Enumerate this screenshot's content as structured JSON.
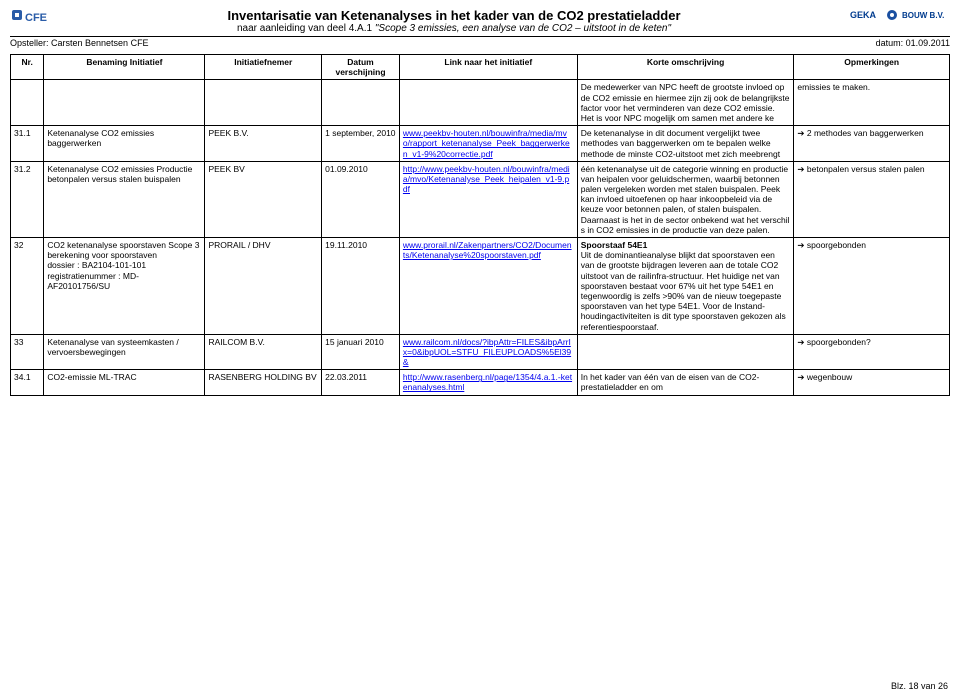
{
  "header": {
    "title": "Inventarisatie van Ketenanalyses in het kader van de CO2 prestatieladder",
    "subtitle_prefix": "naar aanleiding van deel 4.A.1 ",
    "subtitle_italic": "\"Scope 3 emissies, een analyse van de CO2 – uitstoot in de keten\"",
    "left_sub": "Opsteller: Carsten Bennetsen CFE",
    "right_sub": "datum: 01.09.2011",
    "logo_left_text": "CFE",
    "logo_right_text1": "GEKA",
    "logo_right_text2": "BOUW B.V."
  },
  "columns": {
    "nr": "Nr.",
    "benaming": "Benaming Initiatief",
    "initiatiefnemer": "Initiatiefnemer",
    "datum": "Datum verschijning",
    "link": "Link naar het initiatief",
    "omschrijving": "Korte omschrijving",
    "opmerkingen": "Opmerkingen"
  },
  "rows": [
    {
      "nr": "",
      "benaming": "",
      "initiatiefnemer": "",
      "datum": "",
      "link": "",
      "omschrijving": "De medewerker van NPC heeft de grootste invloed op de CO2 emissie en hiermee zijn zij ook de belangrijkste factor voor het verminderen van deze CO2 emissie.\nHet is voor NPC mogelijk om samen met andere ke",
      "opmerkingen": "emissies te maken."
    },
    {
      "nr": "31.1",
      "benaming": "Ketenanalyse CO2 emissies baggerwerken",
      "initiatiefnemer": "PEEK B.V.",
      "datum": "1 september, 2010",
      "link_text": "www.peekbv-houten.nl/bouwinfra/media/mvo/rapport_ketenanalyse_Peek_baggerwerken_v1-9%20correctie.pdf",
      "omschrijving": "De ketenanalyse in dit document vergelijkt twee methodes van baggerwerken om te bepalen welke methode de minste CO2-uitstoot met zich meebrengt",
      "opmerkingen_arrow": "2 methodes van baggerwerken"
    },
    {
      "nr": "31.2",
      "benaming": "Ketenanalyse CO2 emissies Productie betonpalen versus stalen buispalen",
      "initiatiefnemer": "PEEK BV",
      "datum": "01.09.2010",
      "link_text": "http://www.peekbv-houten.nl/bouwinfra/media/mvo/Ketenanalyse_Peek_heipalen_v1-9.pdf",
      "omschrijving": "één ketenanalyse uit de categorie winning en productie van heipalen voor geluidschermen, waarbij betonnen palen vergeleken worden met stalen buispalen. Peek kan invloed uitoefenen op haar inkoopbeleid via de keuze voor betonnen palen, of stalen buispalen. Daarnaast is het in de sector onbekend wat het verschil s in CO2 emissies in de productie van deze palen.",
      "opmerkingen_arrow": "betonpalen versus stalen palen"
    },
    {
      "nr": "32",
      "benaming": "CO2 ketenanalyse spoorstaven Scope 3 berekening voor spoorstaven\ndossier : BA2104-101-101\nregistratienummer : MD-AF20101756/SU",
      "initiatiefnemer": "PRORAIL / DHV",
      "datum": "19.11.2010",
      "link_text": "www.prorail.nl/Zakenpartners/CO2/Documents/Ketenanalyse%20spoorstaven.pdf",
      "omschrijving_title": "Spoorstaaf 54E1",
      "omschrijving": "Uit de dominantieanalyse blijkt dat spoorstaven een van de grootste bijdragen leveren aan de totale CO2 uitstoot van de railinfra-structuur. Het huidige net van spoorstaven bestaat voor 67% uit het type 54E1 en tegenwoordig is zelfs >90% van de nieuw toegepaste spoorstaven van het type 54E1. Voor de Instand-houdingactiviteiten is dit type spoorstaven gekozen als referentiespoorstaaf.",
      "opmerkingen_arrow": "spoorgebonden"
    },
    {
      "nr": "33",
      "benaming": "Ketenanalyse van systeemkasten / vervoersbewegingen",
      "initiatiefnemer": "RAILCOM B.V.",
      "datum": "15 januari 2010",
      "link_text": "www.railcom.nl/docs/?ibpAttr=FILES&ibpArrIx=0&ibpUOL=STFU_FILEUPLOADS%5El39&",
      "omschrijving": "",
      "opmerkingen_arrow": "spoorgebonden?"
    },
    {
      "nr": "34.1",
      "benaming": "CO2-emissie ML-TRAC",
      "initiatiefnemer": "RASENBERG HOLDING BV",
      "datum": "22.03.2011",
      "link_text": "http://www.rasenberg.nl/page/1354/4.a.1.-ketenanalyses.html",
      "omschrijving": "In het kader van één van de eisen van de CO2-prestatieladder en om",
      "opmerkingen_arrow": "wegenbouw"
    }
  ],
  "footer": "Blz. 18 van 26"
}
